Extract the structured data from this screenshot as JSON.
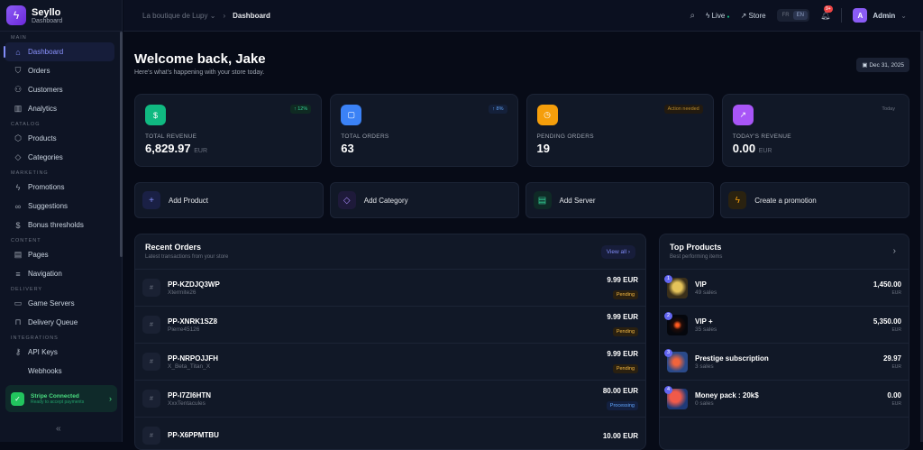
{
  "brand": {
    "name": "Seyllo",
    "sub": "Dashboard"
  },
  "sidebar": {
    "sections": [
      {
        "label": "MAIN",
        "items": [
          {
            "label": "Dashboard",
            "icon": "home-icon",
            "active": true
          },
          {
            "label": "Orders",
            "icon": "bag-icon"
          },
          {
            "label": "Customers",
            "icon": "users-icon"
          },
          {
            "label": "Analytics",
            "icon": "chart-icon"
          }
        ]
      },
      {
        "label": "CATALOG",
        "items": [
          {
            "label": "Products",
            "icon": "box-icon"
          },
          {
            "label": "Categories",
            "icon": "tag-icon"
          }
        ]
      },
      {
        "label": "MARKETING",
        "items": [
          {
            "label": "Promotions",
            "icon": "bolt-icon"
          },
          {
            "label": "Suggestions",
            "icon": "link-icon"
          },
          {
            "label": "Bonus thresholds",
            "icon": "dollar-icon"
          }
        ]
      },
      {
        "label": "CONTENT",
        "items": [
          {
            "label": "Pages",
            "icon": "page-icon"
          },
          {
            "label": "Navigation",
            "icon": "menu-icon"
          }
        ]
      },
      {
        "label": "DELIVERY",
        "items": [
          {
            "label": "Game Servers",
            "icon": "server-icon"
          },
          {
            "label": "Delivery Queue",
            "icon": "lock-icon"
          }
        ]
      },
      {
        "label": "INTEGRATIONS",
        "items": [
          {
            "label": "API Keys",
            "icon": "key-icon"
          },
          {
            "label": "Webhooks",
            "icon": "code-icon"
          }
        ]
      }
    ],
    "stripe": {
      "title": "Stripe Connected",
      "sub": "Ready to accept payments"
    }
  },
  "header": {
    "store": "La boutique de Lupy",
    "page": "Dashboard",
    "live": "Live",
    "store_link": "Store",
    "langs": [
      "FR",
      "EN"
    ],
    "active_lang": "EN",
    "notifications": "9+",
    "avatar": "A",
    "user": "Admin"
  },
  "main": {
    "title": "Welcome back, Jake",
    "subtitle": "Here's what's happening with your store today.",
    "date": "Dec 31, 2025",
    "stats": [
      {
        "label": "TOTAL REVENUE",
        "value": "6,829.97",
        "unit": "EUR",
        "badge": "↑ 12%",
        "color": "#10b981"
      },
      {
        "label": "TOTAL ORDERS",
        "value": "63",
        "unit": "",
        "badge": "↑ 8%",
        "color": "#3b82f6"
      },
      {
        "label": "PENDING ORDERS",
        "value": "19",
        "unit": "",
        "badge": "Action needed",
        "color": "#f59e0b"
      },
      {
        "label": "TODAY'S REVENUE",
        "value": "0.00",
        "unit": "EUR",
        "badge": "Today",
        "color": "#a855f7"
      }
    ],
    "actions": [
      {
        "label": "Add Product"
      },
      {
        "label": "Add Category"
      },
      {
        "label": "Add Server"
      },
      {
        "label": "Create a promotion"
      }
    ],
    "recent_orders": {
      "title": "Recent Orders",
      "subtitle": "Latest transactions from your store",
      "view_all": "View all",
      "rows": [
        {
          "id": "PP-KZDJQ3WP",
          "customer": "Xtermite26",
          "amount": "9.99 EUR",
          "status": "Pending"
        },
        {
          "id": "PP-XNRK1SZ8",
          "customer": "Pierre45126",
          "amount": "9.99 EUR",
          "status": "Pending"
        },
        {
          "id": "PP-NRPOJJFH",
          "customer": "X_Beta_Titan_X",
          "amount": "9.99 EUR",
          "status": "Pending"
        },
        {
          "id": "PP-I7ZI6HTN",
          "customer": "XxxTentacules",
          "amount": "80.00 EUR",
          "status": "Processing"
        },
        {
          "id": "PP-X6PPMTBU",
          "customer": "",
          "amount": "10.00 EUR",
          "status": ""
        }
      ]
    },
    "top_products": {
      "title": "Top Products",
      "subtitle": "Best performing items",
      "rows": [
        {
          "rank": "1",
          "name": "VIP",
          "sales": "49 sales",
          "value": "1,450.00",
          "unit": "EUR"
        },
        {
          "rank": "2",
          "name": "VIP +",
          "sales": "35 sales",
          "value": "5,350.00",
          "unit": "EUR"
        },
        {
          "rank": "3",
          "name": "Prestige subscription",
          "sales": "3 sales",
          "value": "29.97",
          "unit": "EUR"
        },
        {
          "rank": "4",
          "name": "Money pack : 20k$",
          "sales": "0 sales",
          "value": "0.00",
          "unit": "EUR"
        }
      ]
    }
  }
}
